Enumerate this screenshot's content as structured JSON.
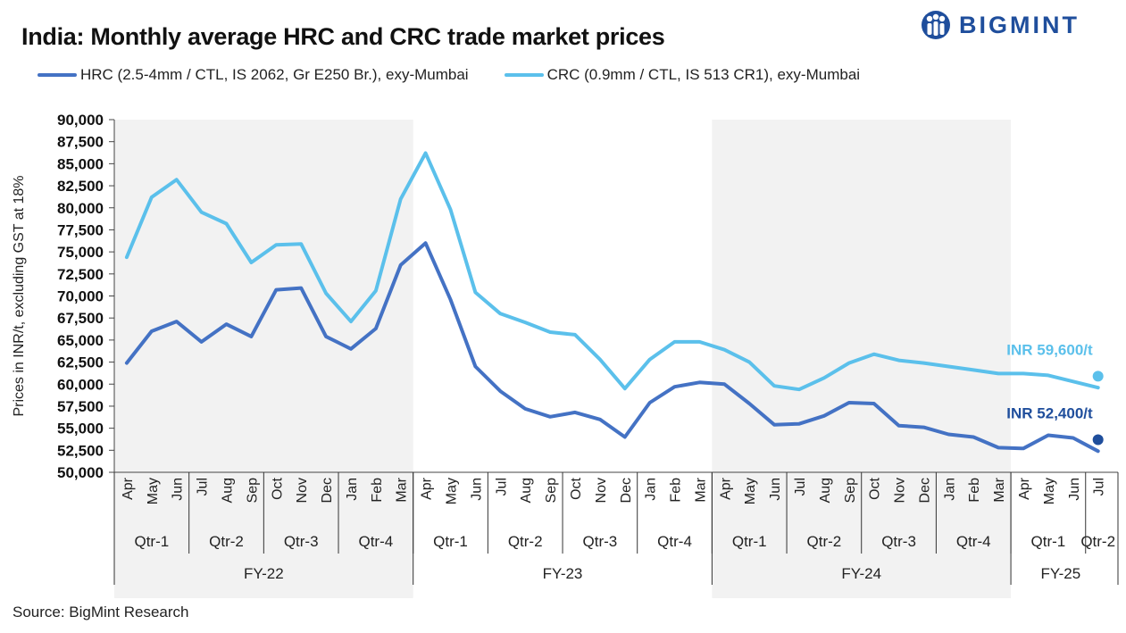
{
  "title": "India: Monthly average HRC and CRC trade market prices",
  "brand": {
    "name": "BIGMINT",
    "color": "#1f4e9c"
  },
  "source": "Source: BigMint Research",
  "chart_data": {
    "type": "line",
    "title": "India: Monthly average HRC and CRC trade market prices",
    "ylabel": "Prices in INR/t, excluding GST at 18%",
    "ylim": [
      50000,
      90000
    ],
    "ytick_step": 2500,
    "categories": [
      "Apr",
      "May",
      "Jun",
      "Jul",
      "Aug",
      "Sep",
      "Oct",
      "Nov",
      "Dec",
      "Jan",
      "Feb",
      "Mar",
      "Apr",
      "May",
      "Jun",
      "Jul",
      "Aug",
      "Sep",
      "Oct",
      "Nov",
      "Dec",
      "Jan",
      "Feb",
      "Mar",
      "Apr",
      "May",
      "Jun",
      "Jul",
      "Aug",
      "Sep",
      "Oct",
      "Nov",
      "Dec",
      "Jan",
      "Feb",
      "Mar",
      "Apr",
      "May",
      "Jun",
      "Jul"
    ],
    "quarters": [
      {
        "label": "Qtr-1",
        "start": 0,
        "end": 2
      },
      {
        "label": "Qtr-2",
        "start": 3,
        "end": 5
      },
      {
        "label": "Qtr-3",
        "start": 6,
        "end": 8
      },
      {
        "label": "Qtr-4",
        "start": 9,
        "end": 11
      },
      {
        "label": "Qtr-1",
        "start": 12,
        "end": 14
      },
      {
        "label": "Qtr-2",
        "start": 15,
        "end": 17
      },
      {
        "label": "Qtr-3",
        "start": 18,
        "end": 20
      },
      {
        "label": "Qtr-4",
        "start": 21,
        "end": 23
      },
      {
        "label": "Qtr-1",
        "start": 24,
        "end": 26
      },
      {
        "label": "Qtr-2",
        "start": 27,
        "end": 29
      },
      {
        "label": "Qtr-3",
        "start": 30,
        "end": 32
      },
      {
        "label": "Qtr-4",
        "start": 33,
        "end": 35
      },
      {
        "label": "Qtr-1",
        "start": 36,
        "end": 38
      },
      {
        "label": "Qtr-2",
        "start": 39,
        "end": 39
      }
    ],
    "fiscal_years": [
      {
        "label": "FY-22",
        "start": 0,
        "end": 11,
        "shaded": true
      },
      {
        "label": "FY-23",
        "start": 12,
        "end": 23,
        "shaded": false
      },
      {
        "label": "FY-24",
        "start": 24,
        "end": 35,
        "shaded": true
      },
      {
        "label": "FY-25",
        "start": 36,
        "end": 39,
        "shaded": false
      }
    ],
    "series": [
      {
        "name": "HRC (2.5-4mm / CTL, IS 2062, Gr E250 Br.), exy-Mumbai",
        "color": "#4472c4",
        "values": [
          62400,
          66000,
          67100,
          64800,
          66800,
          65400,
          70700,
          70900,
          65400,
          64000,
          66300,
          73500,
          76000,
          69600,
          62000,
          59200,
          57200,
          56300,
          56800,
          56000,
          54000,
          57900,
          59700,
          60200,
          60000,
          57800,
          55400,
          55500,
          56400,
          57900,
          57800,
          55300,
          55100,
          54300,
          54000,
          52800,
          52700,
          54200,
          53900,
          52400
        ],
        "end_label": "INR 52,400/t",
        "end_marker_color": "#1f4e9c",
        "end_marker_value": 53700
      },
      {
        "name": "CRC (0.9mm / CTL, IS 513 CR1), exy-Mumbai",
        "color": "#5bc0eb",
        "values": [
          74400,
          81200,
          83200,
          79500,
          78200,
          73800,
          75800,
          75900,
          70300,
          67100,
          70600,
          81000,
          86200,
          79800,
          70400,
          68000,
          67000,
          65900,
          65600,
          62800,
          59500,
          62800,
          64800,
          64800,
          63900,
          62500,
          59800,
          59400,
          60700,
          62400,
          63400,
          62700,
          62400,
          62000,
          61600,
          61200,
          61200,
          61000,
          60300,
          59600
        ],
        "end_label": "INR 59,600/t",
        "end_marker_color": "#5bc0eb",
        "end_marker_value": 60900
      }
    ]
  }
}
